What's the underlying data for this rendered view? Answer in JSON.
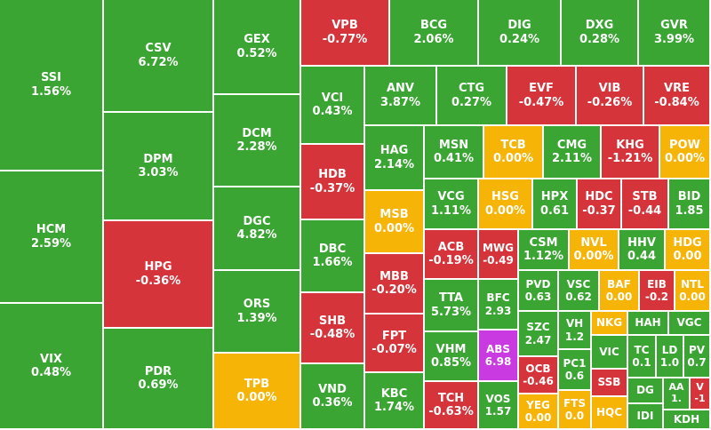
{
  "colors": {
    "up": "#3aa532",
    "down": "#d6343b",
    "flat": "#f6b407",
    "ceiling": "#c93ae0"
  },
  "chart_data": {
    "type": "treemap",
    "items": [
      {
        "ticker": "SSI",
        "change": "1.56%",
        "value": 1.56,
        "status": "up"
      },
      {
        "ticker": "HCM",
        "change": "2.59%",
        "value": 2.59,
        "status": "up"
      },
      {
        "ticker": "VIX",
        "change": "0.48%",
        "value": 0.48,
        "status": "up"
      },
      {
        "ticker": "CSV",
        "change": "6.72%",
        "value": 6.72,
        "status": "up"
      },
      {
        "ticker": "DPM",
        "change": "3.03%",
        "value": 3.03,
        "status": "up"
      },
      {
        "ticker": "HPG",
        "change": "-0.36%",
        "value": -0.36,
        "status": "down"
      },
      {
        "ticker": "PDR",
        "change": "0.69%",
        "value": 0.69,
        "status": "up"
      },
      {
        "ticker": "GEX",
        "change": "0.52%",
        "value": 0.52,
        "status": "up"
      },
      {
        "ticker": "DCM",
        "change": "2.28%",
        "value": 2.28,
        "status": "up"
      },
      {
        "ticker": "DGC",
        "change": "4.82%",
        "value": 4.82,
        "status": "up"
      },
      {
        "ticker": "ORS",
        "change": "1.39%",
        "value": 1.39,
        "status": "up"
      },
      {
        "ticker": "TPB",
        "change": "0.00%",
        "value": 0.0,
        "status": "flat"
      },
      {
        "ticker": "VPB",
        "change": "-0.77%",
        "value": -0.77,
        "status": "down"
      },
      {
        "ticker": "BCG",
        "change": "2.06%",
        "value": 2.06,
        "status": "up"
      },
      {
        "ticker": "DIG",
        "change": "0.24%",
        "value": 0.24,
        "status": "up"
      },
      {
        "ticker": "DXG",
        "change": "0.28%",
        "value": 0.28,
        "status": "up"
      },
      {
        "ticker": "GVR",
        "change": "3.99%",
        "value": 3.99,
        "status": "up"
      },
      {
        "ticker": "VCI",
        "change": "0.43%",
        "value": 0.43,
        "status": "up"
      },
      {
        "ticker": "HDB",
        "change": "-0.37%",
        "value": -0.37,
        "status": "down"
      },
      {
        "ticker": "DBC",
        "change": "1.66%",
        "value": 1.66,
        "status": "up"
      },
      {
        "ticker": "SHB",
        "change": "-0.48%",
        "value": -0.48,
        "status": "down"
      },
      {
        "ticker": "VND",
        "change": "0.36%",
        "value": 0.36,
        "status": "up"
      },
      {
        "ticker": "ANV",
        "change": "3.87%",
        "value": 3.87,
        "status": "up"
      },
      {
        "ticker": "CTG",
        "change": "0.27%",
        "value": 0.27,
        "status": "up"
      },
      {
        "ticker": "EVF",
        "change": "-0.47%",
        "value": -0.47,
        "status": "down"
      },
      {
        "ticker": "VIB",
        "change": "-0.26%",
        "value": -0.26,
        "status": "down"
      },
      {
        "ticker": "VRE",
        "change": "-0.84%",
        "value": -0.84,
        "status": "down"
      },
      {
        "ticker": "HAG",
        "change": "2.14%",
        "value": 2.14,
        "status": "up"
      },
      {
        "ticker": "MSB",
        "change": "0.00%",
        "value": 0.0,
        "status": "flat"
      },
      {
        "ticker": "MBB",
        "change": "-0.20%",
        "value": -0.2,
        "status": "down"
      },
      {
        "ticker": "FPT",
        "change": "-0.07%",
        "value": -0.07,
        "status": "down"
      },
      {
        "ticker": "KBC",
        "change": "1.74%",
        "value": 1.74,
        "status": "up"
      },
      {
        "ticker": "MSN",
        "change": "0.41%",
        "value": 0.41,
        "status": "up"
      },
      {
        "ticker": "TCB",
        "change": "0.00%",
        "value": 0.0,
        "status": "flat"
      },
      {
        "ticker": "CMG",
        "change": "2.11%",
        "value": 2.11,
        "status": "up"
      },
      {
        "ticker": "KHG",
        "change": "-1.21%",
        "value": -1.21,
        "status": "down"
      },
      {
        "ticker": "POW",
        "change": "0.00%",
        "value": 0.0,
        "status": "flat"
      },
      {
        "ticker": "VCG",
        "change": "1.11%",
        "value": 1.11,
        "status": "up"
      },
      {
        "ticker": "HSG",
        "change": "0.00%",
        "value": 0.0,
        "status": "flat"
      },
      {
        "ticker": "HPX",
        "change": "0.61",
        "value": 0.61,
        "status": "up"
      },
      {
        "ticker": "HDC",
        "change": "-0.37",
        "value": -0.37,
        "status": "down"
      },
      {
        "ticker": "STB",
        "change": "-0.44",
        "value": -0.44,
        "status": "down"
      },
      {
        "ticker": "BID",
        "change": "1.85",
        "value": 1.85,
        "status": "up"
      },
      {
        "ticker": "ACB",
        "change": "-0.19%",
        "value": -0.19,
        "status": "down"
      },
      {
        "ticker": "MWG",
        "change": "-0.49",
        "value": -0.49,
        "status": "down"
      },
      {
        "ticker": "CSM",
        "change": "1.12%",
        "value": 1.12,
        "status": "up"
      },
      {
        "ticker": "NVL",
        "change": "0.00%",
        "value": 0.0,
        "status": "flat"
      },
      {
        "ticker": "HHV",
        "change": "0.44",
        "value": 0.44,
        "status": "up"
      },
      {
        "ticker": "HDG",
        "change": "0.00",
        "value": 0.0,
        "status": "flat"
      },
      {
        "ticker": "PVD",
        "change": "0.63",
        "value": 0.63,
        "status": "up"
      },
      {
        "ticker": "VSC",
        "change": "0.62",
        "value": 0.62,
        "status": "up"
      },
      {
        "ticker": "BAF",
        "change": "0.00",
        "value": 0.0,
        "status": "flat"
      },
      {
        "ticker": "EIB",
        "change": "-0.2",
        "value": -0.2,
        "status": "down"
      },
      {
        "ticker": "NTL",
        "change": "0.00",
        "value": 0.0,
        "status": "flat"
      },
      {
        "ticker": "TTA",
        "change": "5.73%",
        "value": 5.73,
        "status": "up"
      },
      {
        "ticker": "BFC",
        "change": "2.93",
        "value": 2.93,
        "status": "up"
      },
      {
        "ticker": "VH",
        "change": "1.2",
        "value": 1.2,
        "status": "up"
      },
      {
        "ticker": "NKG",
        "change": "",
        "value": null,
        "status": "flat"
      },
      {
        "ticker": "HAH",
        "change": "",
        "value": null,
        "status": "up"
      },
      {
        "ticker": "VGC",
        "change": "",
        "value": null,
        "status": "up"
      },
      {
        "ticker": "SZC",
        "change": "2.47",
        "value": 2.47,
        "status": "up"
      },
      {
        "ticker": "VIC",
        "change": "",
        "value": null,
        "status": "up"
      },
      {
        "ticker": "TC",
        "change": "0.1",
        "value": 0.1,
        "status": "up"
      },
      {
        "ticker": "LD",
        "change": "1.0",
        "value": 1.0,
        "status": "up"
      },
      {
        "ticker": "PV",
        "change": "0.7",
        "value": 0.7,
        "status": "up"
      },
      {
        "ticker": "VHM",
        "change": "0.85%",
        "value": 0.85,
        "status": "up"
      },
      {
        "ticker": "ABS",
        "change": "6.98",
        "value": 6.98,
        "status": "ceiling"
      },
      {
        "ticker": "OCB",
        "change": "-0.46",
        "value": -0.46,
        "status": "down"
      },
      {
        "ticker": "PC1",
        "change": "0.6",
        "value": 0.6,
        "status": "up"
      },
      {
        "ticker": "SSB",
        "change": "",
        "value": null,
        "status": "down"
      },
      {
        "ticker": "DG",
        "change": "",
        "value": null,
        "status": "up"
      },
      {
        "ticker": "AA",
        "change": "1.",
        "value": 1.0,
        "status": "up"
      },
      {
        "ticker": "V",
        "change": "-1",
        "value": -1.0,
        "status": "down"
      },
      {
        "ticker": "TCH",
        "change": "-0.63%",
        "value": -0.63,
        "status": "down"
      },
      {
        "ticker": "VOS",
        "change": "1.57",
        "value": 1.57,
        "status": "up"
      },
      {
        "ticker": "YEG",
        "change": "0.00",
        "value": 0.0,
        "status": "flat"
      },
      {
        "ticker": "FTS",
        "change": "0.0",
        "value": 0.0,
        "status": "flat"
      },
      {
        "ticker": "HQC",
        "change": "",
        "value": null,
        "status": "flat"
      },
      {
        "ticker": "IDI",
        "change": "",
        "value": null,
        "status": "up"
      },
      {
        "ticker": "KDH",
        "change": "",
        "value": null,
        "status": "up"
      }
    ]
  }
}
